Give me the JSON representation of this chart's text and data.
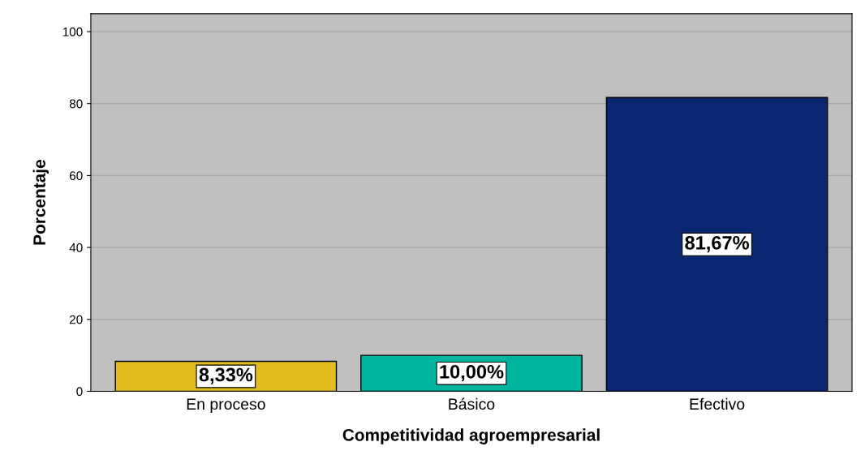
{
  "chart_data": {
    "type": "bar",
    "xlabel": "Competitividad agroempresarial",
    "ylabel": "Porcentaje",
    "categories": [
      "En proceso",
      "Básico",
      "Efectivo"
    ],
    "values": [
      8.33,
      10.0,
      81.67
    ],
    "colors": [
      "#e3bd1e",
      "#00b5a0",
      "#0b2671"
    ],
    "value_labels": [
      "8,33%",
      "10,00%",
      "81,67%"
    ],
    "ylim": [
      0,
      105
    ],
    "yticks": [
      0,
      20,
      40,
      60,
      80,
      100
    ],
    "grid": "y"
  }
}
